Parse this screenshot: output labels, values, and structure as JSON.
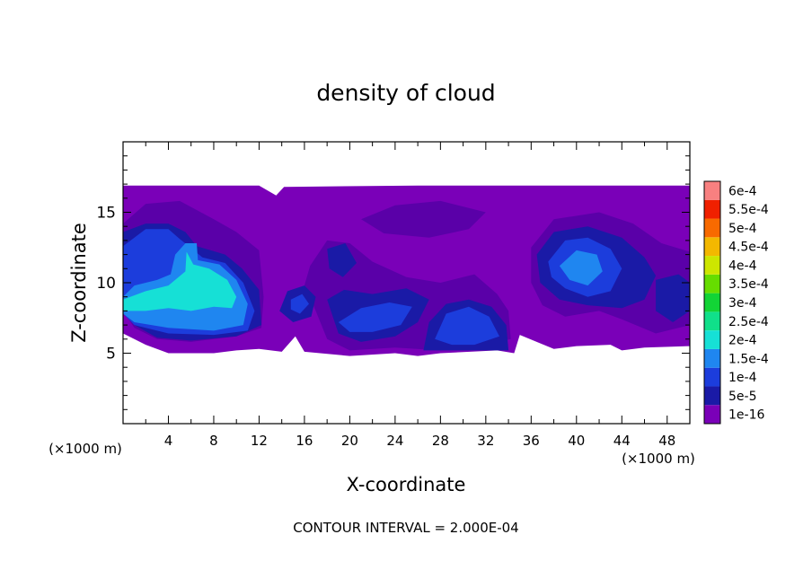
{
  "chart_data": {
    "type": "heatmap",
    "title": "density of cloud",
    "xlabel": "X-coordinate",
    "ylabel": "Z-coordinate",
    "x_unit": "(×1000 m)",
    "xlim": [
      0,
      50
    ],
    "ylim": [
      0,
      20
    ],
    "x_ticks": [
      4,
      8,
      12,
      16,
      20,
      24,
      28,
      32,
      36,
      40,
      44,
      48
    ],
    "y_ticks": [
      5,
      10,
      15
    ],
    "footer": "CONTOUR INTERVAL = 2.000E-04",
    "colorbar": {
      "levels": [
        "1e-16",
        "5e-5",
        "1e-4",
        "1.5e-4",
        "2e-4",
        "2.5e-4",
        "3e-4",
        "3.5e-4",
        "4e-4",
        "4.5e-4",
        "5e-4",
        "5.5e-4",
        "6e-4"
      ],
      "colors": [
        "#7a00b8",
        "#1a1aa6",
        "#1c3ddc",
        "#1f86f0",
        "#16e0d6",
        "#10e08a",
        "#12d436",
        "#66dd00",
        "#cde600",
        "#f3b800",
        "#f86a00",
        "#f02000",
        "#f88080"
      ]
    },
    "colors": {
      "cloud_base": "#7a00b8",
      "purple_dark": "#5a00a8",
      "navy": "#1a1aa6",
      "blue": "#1c3ddc",
      "blue_light": "#1f86f0",
      "cyan": "#16e0d6"
    },
    "field_regions": [
      {
        "level": "cloud_base",
        "pts": [
          [
            0,
            16.9
          ],
          [
            12,
            16.9
          ],
          [
            13.5,
            16.2
          ],
          [
            14.2,
            16.8
          ],
          [
            26,
            16.9
          ],
          [
            50,
            16.9
          ],
          [
            50,
            5.5
          ],
          [
            46,
            5.4
          ],
          [
            44,
            5.2
          ],
          [
            43,
            5.6
          ],
          [
            40,
            5.5
          ],
          [
            38,
            5.3
          ],
          [
            35,
            6.3
          ],
          [
            34.5,
            5.0
          ],
          [
            33,
            5.2
          ],
          [
            28,
            5.0
          ],
          [
            26,
            4.8
          ],
          [
            24,
            5.0
          ],
          [
            20,
            4.8
          ],
          [
            16,
            5.1
          ],
          [
            15.2,
            6.2
          ],
          [
            14,
            5.1
          ],
          [
            12,
            5.3
          ],
          [
            10,
            5.2
          ],
          [
            8,
            5.0
          ],
          [
            4,
            5.0
          ],
          [
            2,
            5.6
          ],
          [
            0,
            6.4
          ]
        ]
      },
      {
        "level": "purple_dark",
        "pts": [
          [
            0,
            14.2
          ],
          [
            2,
            15.6
          ],
          [
            5,
            15.8
          ],
          [
            8,
            14.5
          ],
          [
            10,
            13.6
          ],
          [
            12,
            12.3
          ],
          [
            12.4,
            9
          ],
          [
            12.2,
            6.8
          ],
          [
            10,
            6.2
          ],
          [
            6,
            5.8
          ],
          [
            3,
            6.0
          ],
          [
            1,
            6.8
          ],
          [
            0,
            8
          ]
        ]
      },
      {
        "level": "purple_dark",
        "pts": [
          [
            18,
            13
          ],
          [
            20,
            12.8
          ],
          [
            22,
            11.5
          ],
          [
            25,
            10.4
          ],
          [
            28,
            10
          ],
          [
            31,
            10.6
          ],
          [
            33,
            9.2
          ],
          [
            34,
            8
          ],
          [
            34.2,
            6
          ],
          [
            32,
            5.6
          ],
          [
            28,
            5.2
          ],
          [
            24,
            5.4
          ],
          [
            20,
            5.2
          ],
          [
            18,
            6
          ],
          [
            17,
            8
          ],
          [
            16,
            9.8
          ],
          [
            16.5,
            11.2
          ]
        ]
      },
      {
        "level": "purple_dark",
        "pts": [
          [
            36,
            12.5
          ],
          [
            38,
            14.5
          ],
          [
            42,
            15
          ],
          [
            45,
            14.2
          ],
          [
            47.5,
            12.8
          ],
          [
            50,
            12.2
          ],
          [
            50,
            7
          ],
          [
            47,
            6.4
          ],
          [
            44,
            7.4
          ],
          [
            42,
            8
          ],
          [
            39,
            7.6
          ],
          [
            37,
            8.4
          ],
          [
            36,
            10
          ]
        ]
      },
      {
        "level": "purple_dark",
        "pts": [
          [
            21,
            14.5
          ],
          [
            24,
            15.5
          ],
          [
            28,
            15.8
          ],
          [
            32,
            15
          ],
          [
            30.5,
            13.8
          ],
          [
            27,
            13.2
          ],
          [
            23,
            13.5
          ]
        ]
      },
      {
        "level": "navy",
        "pts": [
          [
            0,
            13.6
          ],
          [
            2,
            14.2
          ],
          [
            4,
            14.2
          ],
          [
            5.5,
            13.6
          ],
          [
            6.5,
            12.6
          ],
          [
            9,
            12
          ],
          [
            10.5,
            11
          ],
          [
            12,
            9.5
          ],
          [
            12.2,
            7
          ],
          [
            10,
            6.2
          ],
          [
            6,
            5.9
          ],
          [
            3,
            6.1
          ],
          [
            1,
            7
          ],
          [
            0,
            8.2
          ]
        ]
      },
      {
        "level": "navy",
        "pts": [
          [
            36.5,
            12
          ],
          [
            38,
            13.6
          ],
          [
            41,
            14
          ],
          [
            44,
            13.2
          ],
          [
            46,
            11.8
          ],
          [
            47,
            10.5
          ],
          [
            46,
            8.8
          ],
          [
            44,
            8.2
          ],
          [
            41,
            8.4
          ],
          [
            38.5,
            8.8
          ],
          [
            36.8,
            10
          ]
        ]
      },
      {
        "level": "navy",
        "pts": [
          [
            26.5,
            5.2
          ],
          [
            27,
            7.2
          ],
          [
            28.5,
            8.5
          ],
          [
            30.5,
            8.8
          ],
          [
            32.5,
            8.3
          ],
          [
            33.8,
            7
          ],
          [
            34,
            5.2
          ]
        ]
      },
      {
        "level": "navy",
        "pts": [
          [
            18,
            8.8
          ],
          [
            19.5,
            9.5
          ],
          [
            22,
            9.2
          ],
          [
            25,
            9.6
          ],
          [
            27,
            8.8
          ],
          [
            26,
            7.2
          ],
          [
            24,
            6.2
          ],
          [
            21,
            5.8
          ],
          [
            19,
            6.4
          ]
        ]
      },
      {
        "level": "navy",
        "pts": [
          [
            14.5,
            9.4
          ],
          [
            16,
            9.8
          ],
          [
            17,
            9
          ],
          [
            16.6,
            7.6
          ],
          [
            15,
            7.2
          ],
          [
            13.8,
            8
          ]
        ]
      },
      {
        "level": "navy",
        "pts": [
          [
            18,
            12.4
          ],
          [
            19.6,
            12.8
          ],
          [
            20.6,
            11.4
          ],
          [
            19.4,
            10.4
          ],
          [
            18.2,
            11
          ]
        ]
      },
      {
        "level": "navy",
        "pts": [
          [
            47,
            10.2
          ],
          [
            49,
            10.6
          ],
          [
            50,
            10
          ],
          [
            50,
            8
          ],
          [
            48.5,
            7.2
          ],
          [
            47,
            8
          ]
        ]
      },
      {
        "level": "blue",
        "pts": [
          [
            0,
            12.6
          ],
          [
            2,
            13.8
          ],
          [
            4,
            13.8
          ],
          [
            5,
            13.1
          ],
          [
            5.8,
            12.6
          ],
          [
            7,
            11.8
          ],
          [
            9,
            11.4
          ],
          [
            10.6,
            10
          ],
          [
            11.6,
            8
          ],
          [
            11,
            6.6
          ],
          [
            8,
            6.3
          ],
          [
            4,
            6.4
          ],
          [
            1,
            7
          ],
          [
            0,
            7.8
          ]
        ]
      },
      {
        "level": "blue",
        "pts": [
          [
            37.5,
            11.5
          ],
          [
            39,
            13
          ],
          [
            41,
            13.2
          ],
          [
            43,
            12.4
          ],
          [
            44,
            11
          ],
          [
            43,
            9.4
          ],
          [
            41,
            9
          ],
          [
            39,
            9.6
          ],
          [
            37.8,
            10.4
          ]
        ]
      },
      {
        "level": "blue",
        "pts": [
          [
            27.5,
            6
          ],
          [
            28.5,
            7.8
          ],
          [
            30.5,
            8.3
          ],
          [
            32.3,
            7.6
          ],
          [
            33.2,
            6.2
          ],
          [
            31,
            5.6
          ],
          [
            29,
            5.6
          ]
        ]
      },
      {
        "level": "blue",
        "pts": [
          [
            19,
            7.2
          ],
          [
            21,
            8.2
          ],
          [
            23.5,
            8.6
          ],
          [
            25.5,
            8.3
          ],
          [
            24.5,
            7
          ],
          [
            22,
            6.5
          ],
          [
            20,
            6.5
          ]
        ]
      },
      {
        "level": "blue",
        "pts": [
          [
            14.8,
            8.8
          ],
          [
            15.8,
            9.2
          ],
          [
            16.4,
            8.5
          ],
          [
            15.6,
            7.8
          ],
          [
            14.8,
            8.1
          ]
        ]
      },
      {
        "level": "blue_light",
        "pts": [
          [
            0,
            9
          ],
          [
            1,
            9.8
          ],
          [
            3,
            10.2
          ],
          [
            4.2,
            10.6
          ],
          [
            4.6,
            12
          ],
          [
            5.5,
            12.8
          ],
          [
            6.5,
            12.8
          ],
          [
            6.6,
            11.6
          ],
          [
            8.5,
            11.3
          ],
          [
            10,
            10.2
          ],
          [
            11,
            8.5
          ],
          [
            10.6,
            7
          ],
          [
            8,
            6.6
          ],
          [
            4,
            6.8
          ],
          [
            1,
            7.2
          ],
          [
            0,
            7.8
          ]
        ]
      },
      {
        "level": "blue_light",
        "pts": [
          [
            38.5,
            11.2
          ],
          [
            40,
            12.3
          ],
          [
            41.8,
            12
          ],
          [
            42.3,
            10.8
          ],
          [
            41,
            9.8
          ],
          [
            39.4,
            10.2
          ]
        ]
      },
      {
        "level": "cyan",
        "pts": [
          [
            0,
            8.8
          ],
          [
            2,
            9.4
          ],
          [
            4,
            9.8
          ],
          [
            5.5,
            10.8
          ],
          [
            5.6,
            12.2
          ],
          [
            6.2,
            11.3
          ],
          [
            7.6,
            11
          ],
          [
            9.2,
            10.2
          ],
          [
            10,
            9
          ],
          [
            9.6,
            8.2
          ],
          [
            8,
            8.3
          ],
          [
            6,
            8
          ],
          [
            4,
            8.2
          ],
          [
            2,
            8
          ],
          [
            0,
            8
          ]
        ]
      }
    ]
  }
}
